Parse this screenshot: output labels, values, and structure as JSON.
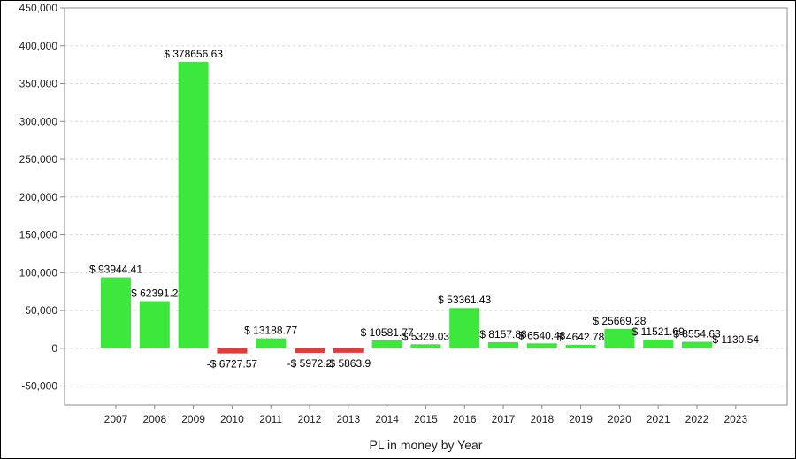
{
  "chart_data": {
    "type": "bar",
    "title": "",
    "xlabel": "PL in money by Year",
    "ylabel": "",
    "ylim": [
      -75000,
      450000
    ],
    "yticks": [
      -50000,
      0,
      50000,
      100000,
      150000,
      200000,
      250000,
      300000,
      350000,
      400000,
      450000
    ],
    "ytick_labels": [
      "-50,000",
      "0",
      "50,000",
      "100,000",
      "150,000",
      "200,000",
      "250,000",
      "300,000",
      "350,000",
      "400,000",
      "450,000"
    ],
    "grid": true,
    "legend": "none",
    "categories": [
      "2007",
      "2008",
      "2009",
      "2010",
      "2011",
      "2012",
      "2013",
      "2014",
      "2015",
      "2016",
      "2017",
      "2018",
      "2019",
      "2020",
      "2021",
      "2022",
      "2023"
    ],
    "values": [
      93944.41,
      62391.2,
      378656.63,
      -6727.57,
      13188.77,
      -5972.2,
      -5863.9,
      10581.77,
      5329.03,
      53361.43,
      8157.88,
      6540.48,
      4642.78,
      25669.28,
      11521.09,
      8554.63,
      1130.54
    ],
    "data_labels": [
      "$ 93944.41",
      "$ 62391.2",
      "$ 378656.63",
      "-$ 6727.57",
      "$ 13188.77",
      "-$ 5972.2",
      "-$ 5863.9",
      "$ 10581.77",
      "$ 5329.03",
      "$ 53361.43",
      "$ 8157.88",
      "$ 6540.48",
      "$ 4642.78",
      "$ 25669.28",
      "$ 11521.09",
      "$ 8554.63",
      "$ 1130.54"
    ],
    "colors": {
      "positive": "#3de83d",
      "negative": "#e03c3c",
      "grid": "#d8d8d8",
      "axis": "#888888"
    }
  }
}
